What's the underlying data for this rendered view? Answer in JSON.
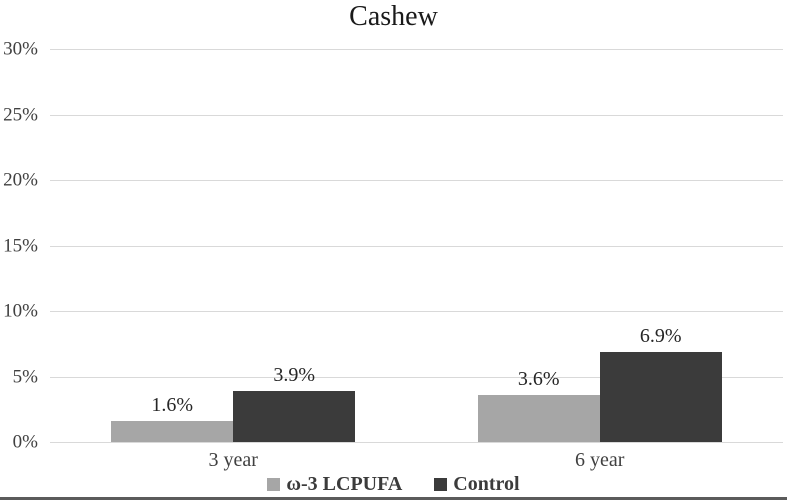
{
  "chart_data": {
    "type": "bar",
    "title": "Cashew",
    "categories": [
      "3 year",
      "6 year"
    ],
    "series": [
      {
        "name": "ω-3 LCPUFA",
        "color": "#a6a6a6",
        "values": [
          1.6,
          3.6
        ],
        "labels": [
          "1.6%",
          "3.6%"
        ]
      },
      {
        "name": "Control",
        "color": "#3b3b3b",
        "values": [
          3.9,
          6.9
        ],
        "labels": [
          "3.9%",
          "6.9%"
        ]
      }
    ],
    "xlabel": "",
    "ylabel": "",
    "ylim": [
      0,
      30
    ],
    "ytick_values": [
      0,
      5,
      10,
      15,
      20,
      25,
      30
    ],
    "ytick_labels": [
      "0%",
      "5%",
      "10%",
      "15%",
      "20%",
      "25%",
      "30%"
    ],
    "grid": true,
    "legend_position": "bottom",
    "gridline_color": "#d9d9d9",
    "axis_label_color": "#404040",
    "data_label_color": "#262626",
    "title_color": "#1a1a1a"
  }
}
